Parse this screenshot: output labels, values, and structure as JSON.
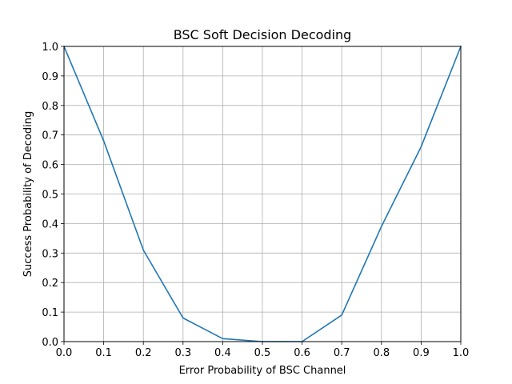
{
  "chart_data": {
    "type": "line",
    "title": "BSC Soft Decision Decoding",
    "xlabel": "Error Probability of BSC Channel",
    "ylabel": "Success Probability of Decoding",
    "xlim": [
      0.0,
      1.0
    ],
    "ylim": [
      0.0,
      1.0
    ],
    "x_ticks": [
      "0.0",
      "0.1",
      "0.2",
      "0.3",
      "0.4",
      "0.5",
      "0.6",
      "0.7",
      "0.8",
      "0.9",
      "1.0"
    ],
    "y_ticks": [
      "0.0",
      "0.1",
      "0.2",
      "0.3",
      "0.4",
      "0.5",
      "0.6",
      "0.7",
      "0.8",
      "0.9",
      "1.0"
    ],
    "grid": true,
    "legend": "none",
    "series": [
      {
        "color": "#1f77b4",
        "x": [
          0.0,
          0.1,
          0.2,
          0.3,
          0.4,
          0.5,
          0.6,
          0.7,
          0.8,
          0.9,
          1.0
        ],
        "y": [
          1.0,
          0.68,
          0.31,
          0.08,
          0.01,
          0.0,
          0.0,
          0.09,
          0.39,
          0.66,
          1.0
        ]
      }
    ]
  }
}
